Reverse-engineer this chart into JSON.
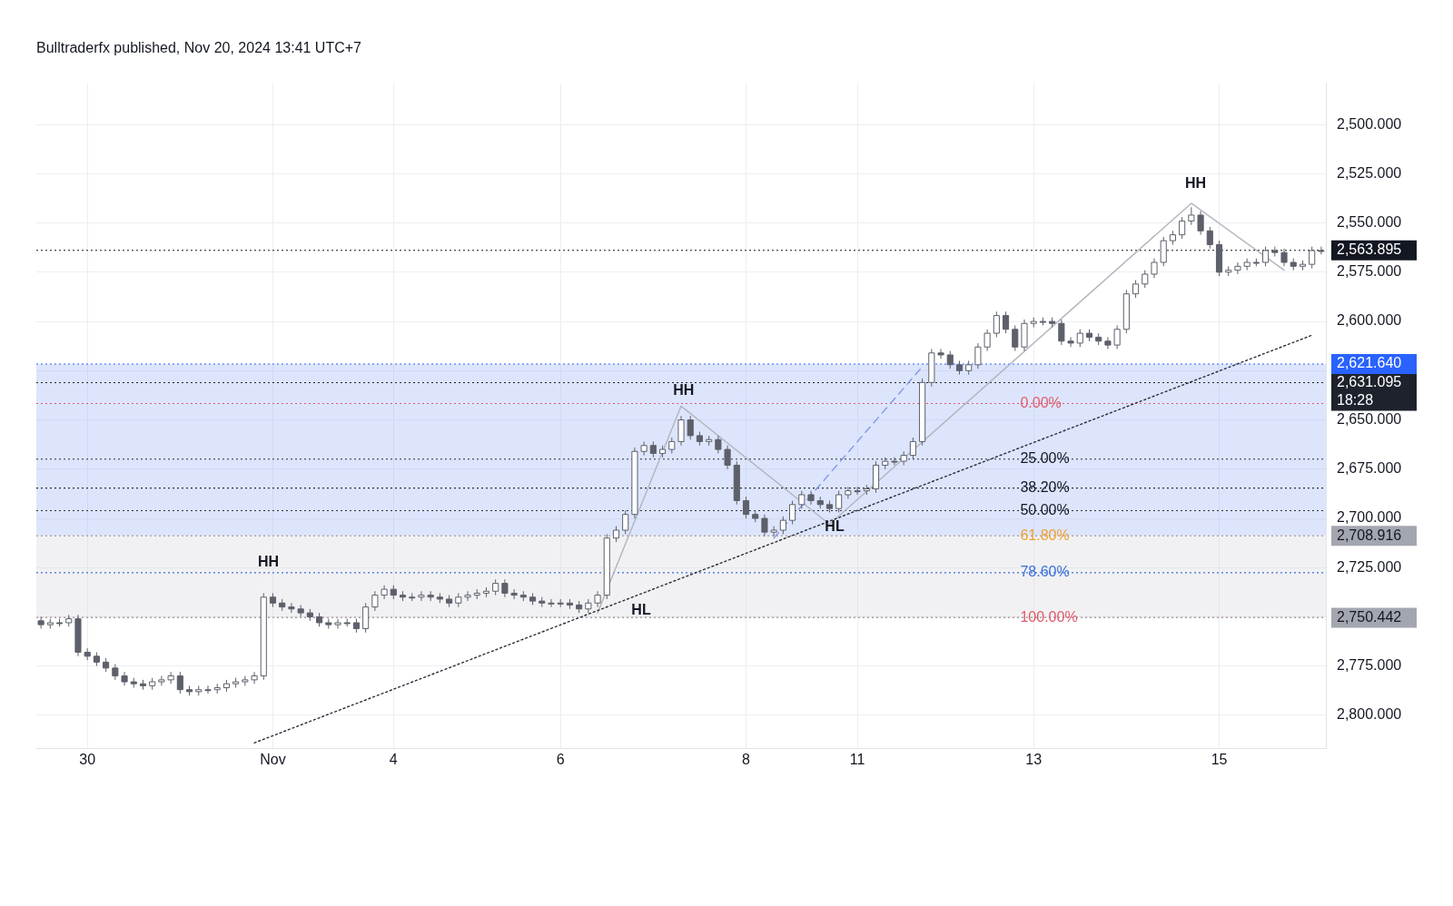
{
  "chart_data": {
    "type": "candlestick",
    "title": "Bulltraderfx published, Nov 20, 2024 13:41 UTC+7",
    "color": "#5d606b",
    "categories": [
      null,
      null,
      null,
      null,
      null,
      "30",
      null,
      null,
      null,
      null,
      null,
      null,
      null,
      null,
      null,
      null,
      null,
      null,
      null,
      null,
      null,
      null,
      null,
      null,
      null,
      "Nov",
      null,
      null,
      null,
      null,
      null,
      null,
      null,
      null,
      null,
      null,
      null,
      null,
      "4",
      null,
      null,
      null,
      null,
      null,
      null,
      null,
      null,
      null,
      null,
      null,
      null,
      null,
      null,
      null,
      null,
      null,
      "6",
      null,
      null,
      null,
      null,
      null,
      null,
      null,
      null,
      null,
      null,
      null,
      null,
      null,
      null,
      null,
      null,
      null,
      null,
      null,
      "8",
      null,
      null,
      null,
      null,
      null,
      null,
      null,
      null,
      null,
      null,
      null,
      "11",
      null,
      null,
      null,
      null,
      null,
      null,
      null,
      null,
      null,
      null,
      null,
      null,
      null,
      null,
      null,
      null,
      null,
      null,
      "13",
      null,
      null,
      null,
      null,
      null,
      null,
      null,
      null,
      null,
      null,
      null,
      null,
      null,
      null,
      null,
      null,
      null,
      null,
      null,
      "15",
      null,
      null,
      null,
      null,
      null,
      null,
      null,
      null,
      null,
      null,
      null
    ],
    "ohlc": [
      [
        2752,
        2756,
        2750,
        2754
      ],
      [
        2754,
        2756,
        2751,
        2753
      ],
      [
        2753,
        2755,
        2751,
        2753
      ],
      [
        2753,
        2755,
        2749,
        2751
      ],
      [
        2751,
        2770,
        2749,
        2768
      ],
      [
        2768,
        2772,
        2766,
        2770
      ],
      [
        2770,
        2775,
        2768,
        2773
      ],
      [
        2773,
        2778,
        2771,
        2776
      ],
      [
        2776,
        2782,
        2774,
        2780
      ],
      [
        2780,
        2785,
        2778,
        2783
      ],
      [
        2783,
        2786,
        2781,
        2784
      ],
      [
        2784,
        2787,
        2782,
        2785
      ],
      [
        2785,
        2787,
        2781,
        2783
      ],
      [
        2783,
        2785,
        2780,
        2782
      ],
      [
        2782,
        2784,
        2778,
        2780
      ],
      [
        2780,
        2789,
        2778,
        2787
      ],
      [
        2787,
        2790,
        2785,
        2788
      ],
      [
        2788,
        2790,
        2785,
        2787
      ],
      [
        2787,
        2789,
        2785,
        2787
      ],
      [
        2787,
        2789,
        2784,
        2786
      ],
      [
        2786,
        2788,
        2782,
        2784
      ],
      [
        2784,
        2786,
        2781,
        2783
      ],
      [
        2783,
        2785,
        2780,
        2782
      ],
      [
        2782,
        2784,
        2778,
        2780
      ],
      [
        2780,
        2782,
        2738,
        2740
      ],
      [
        2740,
        2745,
        2738,
        2743
      ],
      [
        2743,
        2747,
        2741,
        2745
      ],
      [
        2745,
        2748,
        2743,
        2746
      ],
      [
        2746,
        2750,
        2744,
        2748
      ],
      [
        2748,
        2752,
        2746,
        2750
      ],
      [
        2750,
        2755,
        2748,
        2753
      ],
      [
        2753,
        2756,
        2751,
        2754
      ],
      [
        2754,
        2756,
        2751,
        2753
      ],
      [
        2753,
        2755,
        2751,
        2753
      ],
      [
        2753,
        2758,
        2751,
        2756
      ],
      [
        2756,
        2758,
        2743,
        2745
      ],
      [
        2745,
        2747,
        2737,
        2739
      ],
      [
        2739,
        2741,
        2734,
        2736
      ],
      [
        2736,
        2741,
        2734,
        2739
      ],
      [
        2739,
        2742,
        2737,
        2740
      ],
      [
        2740,
        2742,
        2738,
        2740
      ],
      [
        2740,
        2742,
        2737,
        2739
      ],
      [
        2739,
        2742,
        2737,
        2740
      ],
      [
        2740,
        2743,
        2738,
        2741
      ],
      [
        2741,
        2745,
        2739,
        2743
      ],
      [
        2743,
        2745,
        2738,
        2740
      ],
      [
        2740,
        2742,
        2737,
        2739
      ],
      [
        2739,
        2741,
        2736,
        2738
      ],
      [
        2738,
        2740,
        2735,
        2737
      ],
      [
        2737,
        2739,
        2731,
        2733
      ],
      [
        2733,
        2740,
        2731,
        2738
      ],
      [
        2738,
        2741,
        2736,
        2739
      ],
      [
        2739,
        2742,
        2737,
        2740
      ],
      [
        2740,
        2744,
        2738,
        2742
      ],
      [
        2742,
        2745,
        2740,
        2743
      ],
      [
        2743,
        2745,
        2741,
        2743
      ],
      [
        2743,
        2745,
        2741,
        2743
      ],
      [
        2743,
        2746,
        2741,
        2744
      ],
      [
        2744,
        2748,
        2742,
        2746
      ],
      [
        2746,
        2748,
        2741,
        2743
      ],
      [
        2743,
        2745,
        2737,
        2739
      ],
      [
        2739,
        2741,
        2708,
        2710
      ],
      [
        2710,
        2712,
        2704,
        2706
      ],
      [
        2706,
        2708,
        2696,
        2698
      ],
      [
        2698,
        2700,
        2664,
        2666
      ],
      [
        2666,
        2668,
        2661,
        2663
      ],
      [
        2663,
        2669,
        2661,
        2667
      ],
      [
        2667,
        2669,
        2663,
        2665
      ],
      [
        2665,
        2667,
        2659,
        2661
      ],
      [
        2661,
        2663,
        2648,
        2650
      ],
      [
        2650,
        2660,
        2648,
        2658
      ],
      [
        2658,
        2663,
        2656,
        2661
      ],
      [
        2661,
        2663,
        2658,
        2660
      ],
      [
        2660,
        2667,
        2658,
        2665
      ],
      [
        2665,
        2675,
        2663,
        2673
      ],
      [
        2673,
        2693,
        2671,
        2691
      ],
      [
        2691,
        2700,
        2689,
        2698
      ],
      [
        2698,
        2702,
        2696,
        2700
      ],
      [
        2700,
        2709,
        2698,
        2707
      ],
      [
        2707,
        2709,
        2704,
        2706
      ],
      [
        2706,
        2708,
        2699,
        2701
      ],
      [
        2701,
        2703,
        2691,
        2693
      ],
      [
        2693,
        2695,
        2686,
        2688
      ],
      [
        2688,
        2693,
        2686,
        2691
      ],
      [
        2691,
        2695,
        2689,
        2693
      ],
      [
        2693,
        2697,
        2691,
        2695
      ],
      [
        2695,
        2697,
        2686,
        2688
      ],
      [
        2688,
        2690,
        2684,
        2686
      ],
      [
        2686,
        2688,
        2684,
        2686
      ],
      [
        2686,
        2688,
        2683,
        2685
      ],
      [
        2685,
        2687,
        2671,
        2673
      ],
      [
        2673,
        2675,
        2669,
        2671
      ],
      [
        2671,
        2673,
        2669,
        2671
      ],
      [
        2671,
        2673,
        2666,
        2668
      ],
      [
        2668,
        2670,
        2659,
        2661
      ],
      [
        2661,
        2663,
        2629,
        2631
      ],
      [
        2631,
        2633,
        2614,
        2616
      ],
      [
        2616,
        2619,
        2614,
        2617
      ],
      [
        2617,
        2624,
        2615,
        2622
      ],
      [
        2622,
        2627,
        2620,
        2625
      ],
      [
        2625,
        2627,
        2620,
        2622
      ],
      [
        2622,
        2624,
        2611,
        2613
      ],
      [
        2613,
        2615,
        2604,
        2606
      ],
      [
        2606,
        2608,
        2595,
        2597
      ],
      [
        2597,
        2606,
        2595,
        2604
      ],
      [
        2604,
        2615,
        2602,
        2613
      ],
      [
        2613,
        2615,
        2599,
        2601
      ],
      [
        2601,
        2603,
        2598,
        2600
      ],
      [
        2600,
        2602,
        2598,
        2600
      ],
      [
        2600,
        2603,
        2598,
        2601
      ],
      [
        2601,
        2612,
        2599,
        2610
      ],
      [
        2610,
        2613,
        2608,
        2611
      ],
      [
        2611,
        2613,
        2604,
        2606
      ],
      [
        2606,
        2610,
        2604,
        2608
      ],
      [
        2608,
        2612,
        2606,
        2610
      ],
      [
        2610,
        2614,
        2608,
        2612
      ],
      [
        2612,
        2614,
        2602,
        2604
      ],
      [
        2604,
        2606,
        2584,
        2586
      ],
      [
        2586,
        2588,
        2579,
        2581
      ],
      [
        2581,
        2583,
        2574,
        2576
      ],
      [
        2576,
        2578,
        2568,
        2570
      ],
      [
        2570,
        2572,
        2557,
        2559
      ],
      [
        2559,
        2561,
        2554,
        2556
      ],
      [
        2556,
        2558,
        2547,
        2549
      ],
      [
        2549,
        2551,
        2542,
        2546
      ],
      [
        2546,
        2556,
        2544,
        2554
      ],
      [
        2554,
        2563,
        2552,
        2561
      ],
      [
        2561,
        2577,
        2559,
        2575
      ],
      [
        2575,
        2577,
        2572,
        2574
      ],
      [
        2574,
        2576,
        2570,
        2572
      ],
      [
        2572,
        2574,
        2568,
        2570
      ],
      [
        2570,
        2572,
        2568,
        2570
      ],
      [
        2570,
        2572,
        2562,
        2564
      ],
      [
        2564,
        2567,
        2562,
        2565
      ],
      [
        2565,
        2572,
        2563,
        2570
      ],
      [
        2570,
        2574,
        2568,
        2572
      ],
      [
        2572,
        2574,
        2569,
        2571
      ],
      [
        2571,
        2573,
        2562,
        2564
      ],
      [
        2564,
        2566,
        2562,
        2564
      ]
    ],
    "series": [
      {
        "type": "line",
        "color": "#2a2e39",
        "line_style": "dotted",
        "values": [
          null,
          null,
          null,
          null,
          null,
          null,
          null,
          null,
          null,
          null,
          null,
          null,
          null,
          null,
          null,
          null,
          null,
          null,
          null,
          null,
          null,
          null,
          null,
          2814,
          null,
          null,
          null,
          null,
          null,
          null,
          null,
          null,
          null,
          null,
          null,
          null,
          null,
          null,
          null,
          null,
          null,
          null,
          null,
          null,
          null,
          null,
          null,
          null,
          null,
          null,
          null,
          null,
          null,
          null,
          null,
          null,
          null,
          null,
          null,
          null,
          null,
          null,
          null,
          null,
          null,
          null,
          null,
          null,
          null,
          null,
          null,
          null,
          null,
          null,
          null,
          null,
          null,
          null,
          null,
          null,
          null,
          null,
          null,
          null,
          null,
          null,
          null,
          null,
          null,
          null,
          null,
          null,
          null,
          null,
          null,
          null,
          null,
          null,
          null,
          null,
          null,
          null,
          null,
          null,
          null,
          null,
          null,
          null,
          null,
          null,
          null,
          null,
          null,
          null,
          null,
          null,
          null,
          null,
          null,
          null,
          null,
          null,
          null,
          null,
          null,
          null,
          null,
          null,
          null,
          null,
          null,
          null,
          null,
          null,
          null,
          null,
          null,
          2607,
          null
        ]
      },
      {
        "type": "line",
        "color": "#b2b5be",
        "line_style": "solid",
        "values": [
          null,
          null,
          null,
          null,
          null,
          null,
          null,
          null,
          null,
          null,
          null,
          null,
          null,
          null,
          null,
          null,
          null,
          null,
          null,
          null,
          null,
          null,
          null,
          null,
          null,
          null,
          null,
          null,
          null,
          null,
          null,
          null,
          null,
          null,
          null,
          null,
          null,
          null,
          null,
          null,
          null,
          null,
          null,
          null,
          null,
          null,
          null,
          null,
          null,
          null,
          null,
          null,
          null,
          null,
          null,
          null,
          null,
          null,
          null,
          null,
          2748,
          null,
          null,
          null,
          null,
          null,
          null,
          null,
          null,
          2643,
          null,
          null,
          null,
          null,
          null,
          null,
          null,
          null,
          null,
          null,
          null,
          null,
          null,
          null,
          null,
          2703,
          null,
          null,
          null,
          null,
          null,
          null,
          null,
          null,
          null,
          null,
          null,
          null,
          null,
          null,
          null,
          null,
          null,
          null,
          null,
          null,
          null,
          null,
          null,
          null,
          null,
          null,
          null,
          null,
          null,
          null,
          null,
          null,
          null,
          null,
          null,
          null,
          null,
          null,
          2540,
          null,
          null,
          null,
          null,
          null,
          null,
          null,
          null,
          null,
          2574,
          null,
          null,
          null,
          null
        ]
      },
      {
        "type": "line",
        "color": "#7f9be6",
        "line_style": "dashed",
        "values": [
          null,
          null,
          null,
          null,
          null,
          null,
          null,
          null,
          null,
          null,
          null,
          null,
          null,
          null,
          null,
          null,
          null,
          null,
          null,
          null,
          null,
          null,
          null,
          null,
          null,
          null,
          null,
          null,
          null,
          null,
          null,
          null,
          null,
          null,
          null,
          null,
          null,
          null,
          null,
          null,
          null,
          null,
          null,
          null,
          null,
          null,
          null,
          null,
          null,
          null,
          null,
          null,
          null,
          null,
          null,
          null,
          null,
          null,
          null,
          null,
          null,
          null,
          null,
          null,
          null,
          null,
          null,
          null,
          null,
          null,
          null,
          null,
          null,
          null,
          null,
          null,
          null,
          null,
          null,
          2710,
          null,
          null,
          null,
          null,
          null,
          null,
          null,
          null,
          null,
          null,
          null,
          null,
          null,
          null,
          null,
          2623,
          null,
          null,
          null,
          null,
          null,
          null,
          null,
          null,
          null,
          null,
          null,
          null,
          null,
          null,
          null,
          null,
          null,
          null,
          null,
          null,
          null,
          null,
          null,
          null,
          null,
          null,
          null,
          null,
          null,
          null,
          null,
          null,
          null,
          null,
          null,
          null,
          null,
          null,
          null,
          null,
          null,
          null,
          null
        ]
      }
    ],
    "marker": "none",
    "ylim": [
      2817,
      2479
    ],
    "yticks": [
      {
        "value": 2500,
        "label": "2,500.000"
      },
      {
        "value": 2525,
        "label": "2,525.000"
      },
      {
        "value": 2550,
        "label": "2,550.000"
      },
      {
        "value": 2575,
        "label": "2,575.000"
      },
      {
        "value": 2600,
        "label": "2,600.000"
      },
      {
        "value": 2625,
        "label": null
      },
      {
        "value": 2650,
        "label": "2,650.000"
      },
      {
        "value": 2675,
        "label": "2,675.000"
      },
      {
        "value": 2700,
        "label": "2,700.000"
      },
      {
        "value": 2725,
        "label": "2,725.000"
      },
      {
        "value": 2750,
        "label": null
      },
      {
        "value": 2775,
        "label": "2,775.000"
      },
      {
        "value": 2800,
        "label": "2,800.000"
      }
    ],
    "grid": true,
    "bands": [
      {
        "axis": "y",
        "from": 2621.64,
        "to": 2708.916,
        "color": "#9db5f5"
      },
      {
        "axis": "y",
        "from": 2708.916,
        "to": 2750.442,
        "color": "#d8d8dc"
      }
    ],
    "ref_lines": [
      {
        "axis": "y",
        "value": 2641.7,
        "color": "#e05a6a",
        "line_style": "dotted"
      },
      {
        "axis": "y",
        "value": 2669.9,
        "color": "#2a2e39",
        "line_style": "dotted"
      },
      {
        "axis": "y",
        "value": 2684.6,
        "color": "#2a2e39",
        "line_style": "dotted"
      },
      {
        "axis": "y",
        "value": 2696.1,
        "color": "#2a2e39",
        "line_style": "dotted"
      },
      {
        "axis": "y",
        "value": 2708.9,
        "color": "#f0a030",
        "line_style": "dotted"
      },
      {
        "axis": "y",
        "value": 2727.6,
        "color": "#3a6fd8",
        "line_style": "dotted"
      },
      {
        "axis": "y",
        "value": 2750.4,
        "color": "#e05a6a",
        "line_style": "dotted"
      },
      {
        "axis": "y",
        "value": 2631.095,
        "label": "2,631.095\n18:28",
        "color": "#1e222d",
        "line_style": "dotted"
      },
      {
        "axis": "y",
        "value": 2563.895,
        "label": "2,563.895",
        "color": "#131722",
        "line_style": "dotted"
      },
      {
        "axis": "y",
        "value": 2621.64,
        "label": "2,621.640",
        "color": "#2962ff",
        "line_style": "dotted"
      },
      {
        "axis": "y",
        "value": 2708.916,
        "label": "2,708.916",
        "color": "#a3a6af",
        "line_style": "dotted"
      },
      {
        "axis": "y",
        "value": 2750.442,
        "label": "2,750.442",
        "color": "#a3a6af",
        "line_style": "dotted"
      }
    ],
    "annotations": [
      "HH",
      "HH",
      "HL",
      "HL",
      "HH",
      {
        "text": "0.00%",
        "y": 2641.7
      },
      {
        "text": "25.00%",
        "y": 2669.9
      },
      {
        "text": "38.20%",
        "y": 2684.6
      },
      {
        "text": "50.00%",
        "y": 2696.1
      },
      {
        "text": "61.80%",
        "y": 2708.9
      },
      {
        "text": "78.60%",
        "y": 2727.6
      },
      {
        "text": "100.00%",
        "y": 2750.4
      }
    ]
  }
}
